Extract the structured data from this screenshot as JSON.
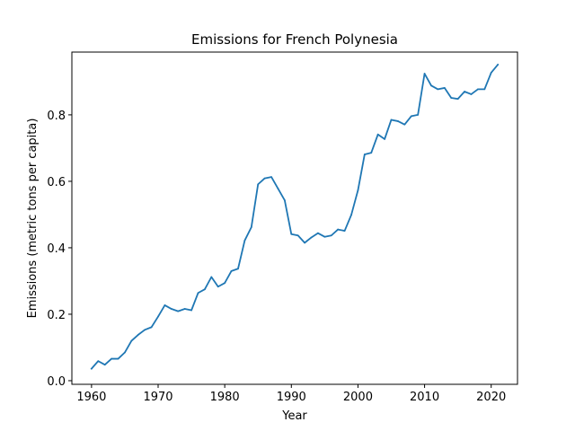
{
  "chart_data": {
    "type": "line",
    "title": "Emissions for French Polynesia",
    "xlabel": "Year",
    "ylabel": "Emissions (metric tons per capita)",
    "xlim": [
      1957.05,
      2023.95
    ],
    "ylim": [
      -0.0109,
      0.9889
    ],
    "x_ticks": [
      1960,
      1970,
      1980,
      1990,
      2000,
      2010,
      2020
    ],
    "y_ticks": [
      0.0,
      0.2,
      0.4,
      0.6,
      0.8
    ],
    "x_tick_labels": [
      "1960",
      "1970",
      "1980",
      "1990",
      "2000",
      "2010",
      "2020"
    ],
    "y_tick_labels": [
      "0.0",
      "0.2",
      "0.4",
      "0.6",
      "0.8"
    ],
    "grid": false,
    "line_color": "#1f77b4",
    "series": [
      {
        "x": [
          1960,
          1961,
          1962,
          1963,
          1964,
          1965,
          1966,
          1967,
          1968,
          1969,
          1970,
          1971,
          1972,
          1973,
          1974,
          1975,
          1976,
          1977,
          1978,
          1979,
          1980,
          1981,
          1982,
          1983,
          1984,
          1985,
          1986,
          1987,
          1988,
          1989,
          1990,
          1991,
          1992,
          1993,
          1994,
          1995,
          1996,
          1997,
          1998,
          1999,
          2000,
          2001,
          2002,
          2003,
          2004,
          2005,
          2006,
          2007,
          2008,
          2009,
          2010,
          2011,
          2012,
          2013,
          2014,
          2015,
          2016,
          2017,
          2018,
          2019,
          2020,
          2021
        ],
        "values": [
          0.036,
          0.059,
          0.048,
          0.066,
          0.066,
          0.085,
          0.12,
          0.138,
          0.153,
          0.161,
          0.193,
          0.227,
          0.216,
          0.209,
          0.216,
          0.212,
          0.264,
          0.275,
          0.312,
          0.283,
          0.294,
          0.33,
          0.337,
          0.422,
          0.462,
          0.591,
          0.609,
          0.613,
          0.578,
          0.543,
          0.441,
          0.437,
          0.415,
          0.431,
          0.444,
          0.433,
          0.437,
          0.455,
          0.451,
          0.499,
          0.573,
          0.681,
          0.686,
          0.741,
          0.727,
          0.785,
          0.781,
          0.771,
          0.796,
          0.8,
          0.924,
          0.888,
          0.877,
          0.881,
          0.851,
          0.848,
          0.87,
          0.862,
          0.877,
          0.877,
          0.927,
          0.951
        ]
      }
    ]
  }
}
